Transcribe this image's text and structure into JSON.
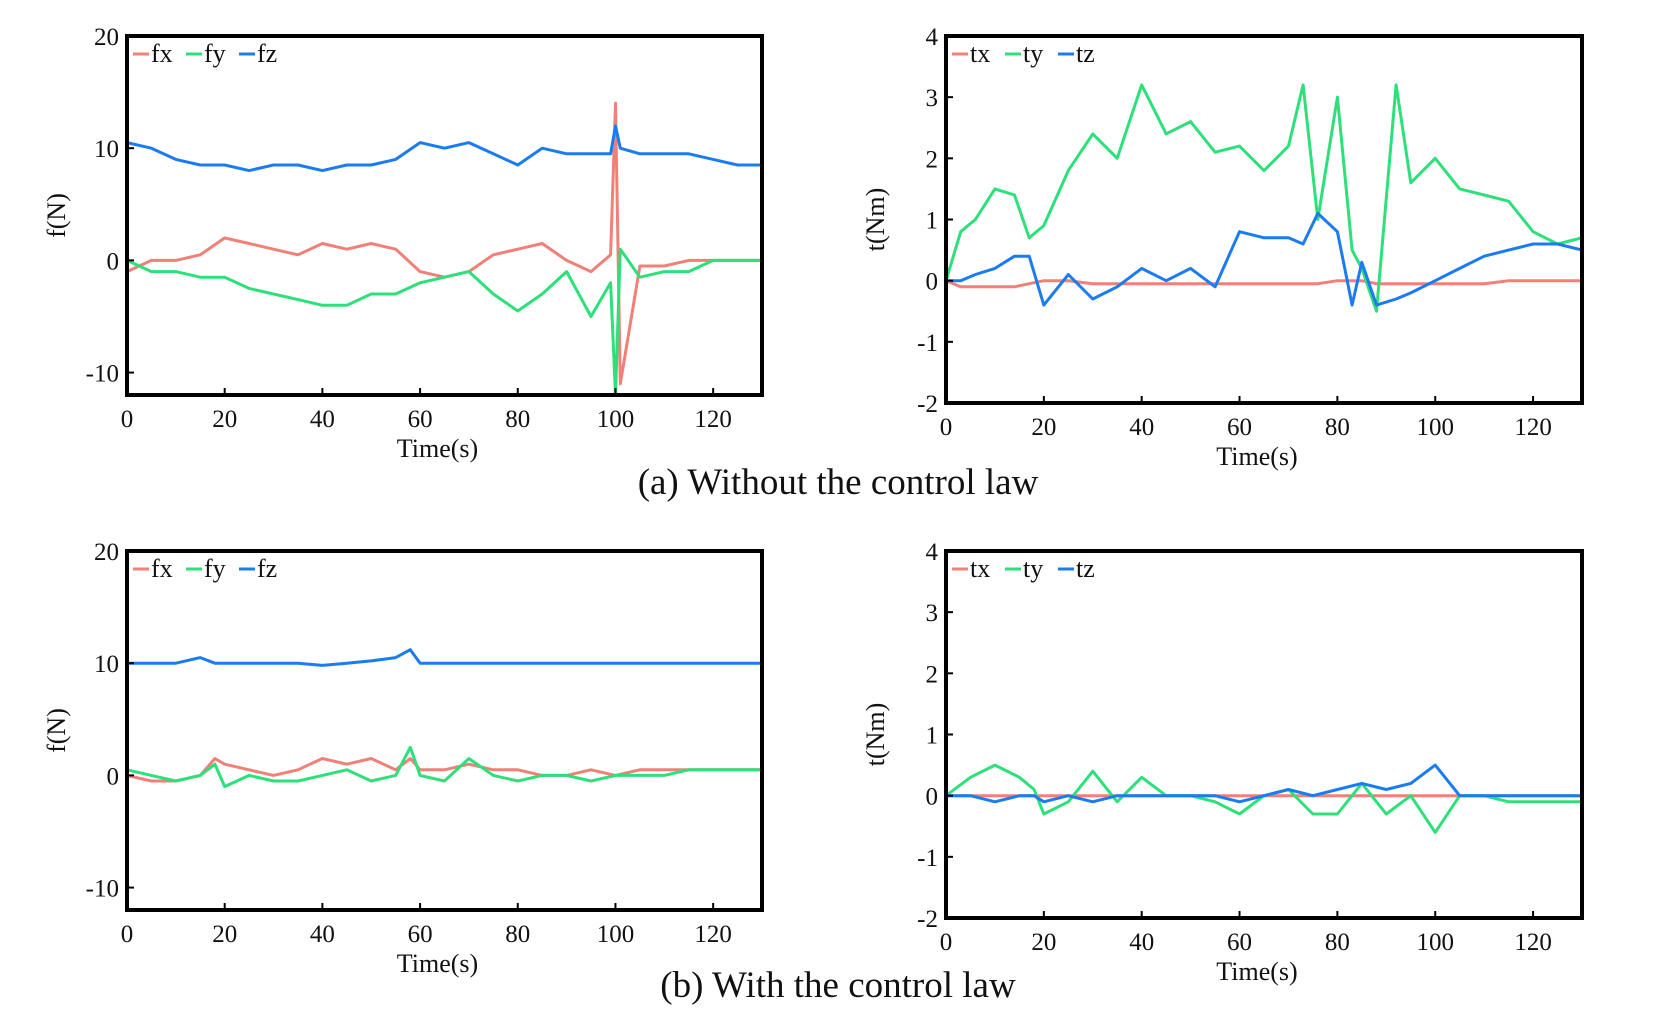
{
  "captions": {
    "a": "(a) Without the control law",
    "b": "(b) With the control law"
  },
  "colors": {
    "fx": "#F08078",
    "fy": "#2EE07A",
    "fz": "#1A7CF0",
    "tx": "#F08078",
    "ty": "#2EE07A",
    "tz": "#1A7CF0"
  },
  "chart_data": [
    {
      "id": "a-force",
      "type": "line",
      "xlabel": "Time(s)",
      "ylabel": "f(N)",
      "xlim": [
        0,
        130
      ],
      "ylim": [
        -12,
        20
      ],
      "xticks": [
        0,
        20,
        40,
        60,
        80,
        100,
        120
      ],
      "yticks": [
        -10,
        0,
        10,
        20
      ],
      "grid": false,
      "legend": "top-left",
      "x": [
        0,
        5,
        10,
        15,
        20,
        25,
        30,
        35,
        40,
        45,
        50,
        55,
        60,
        65,
        70,
        75,
        80,
        85,
        90,
        95,
        99,
        100,
        101,
        105,
        110,
        115,
        120,
        125,
        130
      ],
      "series": [
        {
          "name": "fx",
          "values": [
            -1,
            0,
            0,
            0.5,
            2,
            1.5,
            1,
            0.5,
            1.5,
            1,
            1.5,
            1,
            -1,
            -1.5,
            -1,
            0.5,
            1,
            1.5,
            0,
            -1,
            0.5,
            14,
            -11,
            -0.5,
            -0.5,
            0,
            0,
            0,
            0
          ]
        },
        {
          "name": "fy",
          "values": [
            0,
            -1,
            -1,
            -1.5,
            -1.5,
            -2.5,
            -3,
            -3.5,
            -4,
            -4,
            -3,
            -3,
            -2,
            -1.5,
            -1,
            -3,
            -4.5,
            -3,
            -1,
            -5,
            -2,
            -12,
            1,
            -1.5,
            -1,
            -1,
            0,
            0,
            0
          ]
        },
        {
          "name": "fz",
          "values": [
            10.5,
            10,
            9,
            8.5,
            8.5,
            8,
            8.5,
            8.5,
            8,
            8.5,
            8.5,
            9,
            10.5,
            10,
            10.5,
            9.5,
            8.5,
            10,
            9.5,
            9.5,
            9.5,
            12,
            10,
            9.5,
            9.5,
            9.5,
            9,
            8.5,
            8.5
          ]
        }
      ]
    },
    {
      "id": "a-torque",
      "type": "line",
      "xlabel": "Time(s)",
      "ylabel": "t(Nm)",
      "xlim": [
        0,
        130
      ],
      "ylim": [
        -2,
        4
      ],
      "xticks": [
        0,
        20,
        40,
        60,
        80,
        100,
        120
      ],
      "yticks": [
        -2,
        -1,
        0,
        1,
        2,
        3,
        4
      ],
      "grid": false,
      "legend": "top-left",
      "x": [
        0,
        3,
        6,
        10,
        14,
        17,
        20,
        25,
        30,
        35,
        40,
        45,
        50,
        55,
        60,
        65,
        70,
        73,
        76,
        80,
        83,
        85,
        88,
        92,
        95,
        100,
        105,
        110,
        115,
        120,
        125,
        130
      ],
      "series": [
        {
          "name": "tx",
          "values": [
            0,
            -0.1,
            -0.1,
            -0.1,
            -0.1,
            -0.05,
            0,
            0,
            -0.05,
            -0.05,
            -0.05,
            -0.05,
            -0.05,
            -0.05,
            -0.05,
            -0.05,
            -0.05,
            -0.05,
            -0.05,
            0,
            0,
            0,
            -0.05,
            -0.05,
            -0.05,
            -0.05,
            -0.05,
            -0.05,
            0,
            0,
            0,
            0
          ]
        },
        {
          "name": "ty",
          "values": [
            0,
            0.8,
            1,
            1.5,
            1.4,
            0.7,
            0.9,
            1.8,
            2.4,
            2,
            3.2,
            2.4,
            2.6,
            2.1,
            2.2,
            1.8,
            2.2,
            3.2,
            1,
            3,
            0.5,
            0.2,
            -0.5,
            3.2,
            1.6,
            2,
            1.5,
            1.4,
            1.3,
            0.8,
            0.6,
            0.7
          ]
        },
        {
          "name": "tz",
          "values": [
            0,
            0,
            0.1,
            0.2,
            0.4,
            0.4,
            -0.4,
            0.1,
            -0.3,
            -0.1,
            0.2,
            0,
            0.2,
            -0.1,
            0.8,
            0.7,
            0.7,
            0.6,
            1.1,
            0.8,
            -0.4,
            0.3,
            -0.4,
            -0.3,
            -0.2,
            0,
            0.2,
            0.4,
            0.5,
            0.6,
            0.6,
            0.5
          ]
        }
      ]
    },
    {
      "id": "b-force",
      "type": "line",
      "xlabel": "Time(s)",
      "ylabel": "f(N)",
      "xlim": [
        0,
        130
      ],
      "ylim": [
        -12,
        20
      ],
      "xticks": [
        0,
        20,
        40,
        60,
        80,
        100,
        120
      ],
      "yticks": [
        -10,
        0,
        10,
        20
      ],
      "grid": false,
      "legend": "top-left",
      "x": [
        0,
        5,
        10,
        15,
        18,
        20,
        25,
        30,
        35,
        40,
        45,
        50,
        55,
        58,
        60,
        65,
        70,
        75,
        80,
        85,
        90,
        95,
        100,
        105,
        110,
        115,
        120,
        125,
        130
      ],
      "series": [
        {
          "name": "fx",
          "values": [
            0,
            -0.5,
            -0.5,
            0,
            1.5,
            1,
            0.5,
            0,
            0.5,
            1.5,
            1,
            1.5,
            0.5,
            1.5,
            0.5,
            0.5,
            1,
            0.5,
            0.5,
            0,
            0,
            0.5,
            0,
            0.5,
            0.5,
            0.5,
            0.5,
            0.5,
            0.5
          ]
        },
        {
          "name": "fy",
          "values": [
            0.5,
            0,
            -0.5,
            0,
            1,
            -1,
            0,
            -0.5,
            -0.5,
            0,
            0.5,
            -0.5,
            0,
            2.5,
            0,
            -0.5,
            1.5,
            0,
            -0.5,
            0,
            0,
            -0.5,
            0,
            0,
            0,
            0.5,
            0.5,
            0.5,
            0.5
          ]
        },
        {
          "name": "fz",
          "values": [
            10,
            10,
            10,
            10.5,
            10,
            10,
            10,
            10,
            10,
            9.8,
            10,
            10.2,
            10.5,
            11.2,
            10,
            10,
            10,
            10,
            10,
            10,
            10,
            10,
            10,
            10,
            10,
            10,
            10,
            10,
            10
          ]
        }
      ]
    },
    {
      "id": "b-torque",
      "type": "line",
      "xlabel": "Time(s)",
      "ylabel": "t(Nm)",
      "xlim": [
        0,
        130
      ],
      "ylim": [
        -2,
        4
      ],
      "xticks": [
        0,
        20,
        40,
        60,
        80,
        100,
        120
      ],
      "yticks": [
        -2,
        -1,
        0,
        1,
        2,
        3,
        4
      ],
      "grid": false,
      "legend": "top-left",
      "x": [
        0,
        5,
        10,
        15,
        18,
        20,
        25,
        30,
        35,
        40,
        45,
        50,
        55,
        60,
        65,
        70,
        75,
        80,
        85,
        90,
        95,
        100,
        105,
        110,
        115,
        120,
        125,
        130
      ],
      "series": [
        {
          "name": "tx",
          "values": [
            0,
            0,
            0,
            0,
            0,
            0,
            0,
            0,
            0,
            0,
            0,
            0,
            0,
            0,
            0,
            0,
            0,
            0,
            0,
            0,
            0,
            0,
            0,
            0,
            0,
            0,
            0,
            0
          ]
        },
        {
          "name": "ty",
          "values": [
            0,
            0.3,
            0.5,
            0.3,
            0.1,
            -0.3,
            -0.1,
            0.4,
            -0.1,
            0.3,
            0,
            0,
            -0.1,
            -0.3,
            0,
            0.1,
            -0.3,
            -0.3,
            0.2,
            -0.3,
            0,
            -0.6,
            0,
            0,
            -0.1,
            -0.1,
            -0.1,
            -0.1
          ]
        },
        {
          "name": "tz",
          "values": [
            0,
            0,
            -0.1,
            0,
            0,
            -0.1,
            0,
            -0.1,
            0,
            0,
            0,
            0,
            0,
            -0.1,
            0,
            0.1,
            0,
            0.1,
            0.2,
            0.1,
            0.2,
            0.5,
            0,
            0,
            0,
            0,
            0,
            0
          ]
        }
      ]
    }
  ]
}
